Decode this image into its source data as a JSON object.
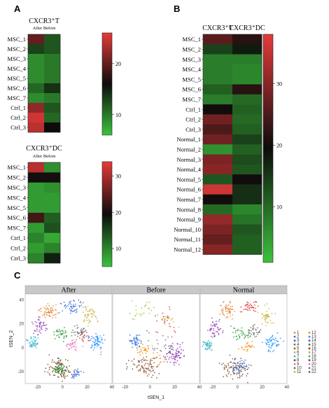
{
  "panels": {
    "a": "A",
    "b": "B",
    "c": "C"
  },
  "colors": {
    "low": "#3cc23c",
    "mid": "#0c0c0c",
    "high": "#e63a3a"
  },
  "chart_data": [
    {
      "type": "heatmap",
      "title": "CXCR3⁺T",
      "subtitle": "After Before",
      "columns": [
        "After",
        "Before"
      ],
      "rows": [
        "MSC_1",
        "MSC_2",
        "MSC_3",
        "MSC_4",
        "MSC_5",
        "MSC_6",
        "MSC_7",
        "Ctrl_1",
        "Ctrl_2",
        "Ctrl_3"
      ],
      "values": [
        [
          20,
          12
        ],
        [
          13,
          12
        ],
        [
          9,
          10
        ],
        [
          9,
          10
        ],
        [
          9,
          10
        ],
        [
          11,
          14
        ],
        [
          9,
          10
        ],
        [
          22,
          12
        ],
        [
          25,
          11
        ],
        [
          24,
          16
        ]
      ],
      "colorbar": {
        "ticks": [
          10,
          20
        ],
        "range": [
          6,
          26
        ]
      }
    },
    {
      "type": "heatmap",
      "title": "CXCR3⁺DC",
      "subtitle": "After Before",
      "columns": [
        "After",
        "Before"
      ],
      "rows": [
        "MSC_1",
        "MSC_2",
        "MSC_3",
        "MSC_4",
        "MSC_5",
        "MSC_6",
        "MSC_7",
        "Ctrl_1",
        "Ctrl_2",
        "Ctrl_3"
      ],
      "values": [
        [
          31,
          9
        ],
        [
          20,
          20
        ],
        [
          8,
          9
        ],
        [
          8,
          8
        ],
        [
          8,
          8
        ],
        [
          23,
          13
        ],
        [
          8,
          14
        ],
        [
          10,
          7
        ],
        [
          8,
          10
        ],
        [
          10,
          18
        ]
      ],
      "colorbar": {
        "ticks": [
          10,
          20,
          30
        ],
        "range": [
          5,
          34
        ]
      }
    },
    {
      "type": "heatmap",
      "title": "",
      "columns": [
        "CXCR3⁺T",
        "CXCR3⁺DC"
      ],
      "rows": [
        "MSC_1",
        "MSC_2",
        "MSC_3",
        "MSC_4",
        "MSC_5",
        "MSC_6",
        "MSC_7",
        "Ctrl_1",
        "Ctrl_2",
        "Ctrl_3",
        "Normal_1",
        "Normal_2",
        "Normal_3",
        "Normal_4",
        "Normal_5",
        "Normal_6",
        "Normal_7",
        "Normal_8",
        "Normal_9",
        "Normal_10",
        "Normal_11",
        "Normal_12"
      ],
      "values": [
        [
          26,
          22
        ],
        [
          14,
          18
        ],
        [
          8,
          8
        ],
        [
          8,
          7
        ],
        [
          8,
          7
        ],
        [
          11,
          22
        ],
        [
          8,
          10
        ],
        [
          20,
          11
        ],
        [
          28,
          10
        ],
        [
          25,
          11
        ],
        [
          28,
          14
        ],
        [
          6,
          11
        ],
        [
          29,
          13
        ],
        [
          30,
          12
        ],
        [
          12,
          20
        ],
        [
          36,
          16
        ],
        [
          20,
          16
        ],
        [
          10,
          7
        ],
        [
          31,
          9
        ],
        [
          29,
          12
        ],
        [
          27,
          11
        ],
        [
          30,
          11
        ]
      ],
      "colorbar": {
        "ticks": [
          10,
          20,
          30
        ],
        "range": [
          1,
          38
        ]
      }
    },
    {
      "type": "scatter",
      "title": "",
      "xlabel": "tSEN_1",
      "ylabel": "tSEN_2",
      "facets": [
        "After",
        "Before",
        "Normal"
      ],
      "xticks": [
        "-20",
        "0",
        "20",
        "40"
      ],
      "yticks": [
        "40",
        "20",
        "0",
        "-20"
      ],
      "xlim": [
        -30,
        40
      ],
      "ylim": [
        -30,
        45
      ],
      "legend": [
        "1",
        "2",
        "3",
        "4",
        "5",
        "6",
        "7",
        "8",
        "9",
        "10",
        "11",
        "12",
        "13",
        "14",
        "15",
        "16",
        "17",
        "18",
        "19",
        "20",
        "21",
        "22"
      ],
      "legend_placement": "right",
      "palette": [
        "#e8893a",
        "#3a6fd8",
        "#8e3bb5",
        "#2e9e3e",
        "#d83a3a",
        "#c9b43a",
        "#3ab5c9",
        "#7a4a2a",
        "#e06fb0",
        "#6a6a6a",
        "#9acd32",
        "#ff8c00",
        "#1e90ff",
        "#9932cc",
        "#228b22",
        "#b22222",
        "#daa520",
        "#20b2aa",
        "#8b4513",
        "#ff69b4",
        "#4682b4",
        "#556b2f"
      ],
      "clusters": {
        "After": [
          {
            "cluster": 1,
            "x": -10,
            "y": 30,
            "n": 60,
            "sx": 5,
            "sy": 4
          },
          {
            "cluster": 2,
            "x": 8,
            "y": 34,
            "n": 50,
            "sx": 6,
            "sy": 4
          },
          {
            "cluster": 6,
            "x": 22,
            "y": 28,
            "n": 45,
            "sx": 4,
            "sy": 5
          },
          {
            "cluster": 3,
            "x": -18,
            "y": 18,
            "n": 45,
            "sx": 4,
            "sy": 5
          },
          {
            "cluster": 7,
            "x": -24,
            "y": 4,
            "n": 45,
            "sx": 3,
            "sy": 4
          },
          {
            "cluster": 13,
            "x": 28,
            "y": 5,
            "n": 60,
            "sx": 5,
            "sy": 5
          },
          {
            "cluster": 4,
            "x": 0,
            "y": 12,
            "n": 40,
            "sx": 6,
            "sy": 4
          },
          {
            "cluster": 9,
            "x": 8,
            "y": 2,
            "n": 30,
            "sx": 4,
            "sy": 3
          },
          {
            "cluster": 8,
            "x": -2,
            "y": -18,
            "n": 110,
            "sx": 8,
            "sy": 6
          },
          {
            "cluster": 4,
            "x": -2,
            "y": -18,
            "n": 40,
            "sx": 4,
            "sy": 3
          },
          {
            "cluster": 2,
            "x": 12,
            "y": -22,
            "n": 30,
            "sx": 3,
            "sy": 3
          },
          {
            "cluster": 10,
            "x": 14,
            "y": 14,
            "n": 35,
            "sx": 4,
            "sy": 3
          },
          {
            "cluster": 5,
            "x": 18,
            "y": 8,
            "n": 15,
            "sx": 3,
            "sy": 3
          }
        ],
        "Before": [
          {
            "cluster": 11,
            "x": -5,
            "y": 32,
            "n": 25,
            "sx": 8,
            "sy": 6
          },
          {
            "cluster": 6,
            "x": 15,
            "y": 25,
            "n": 20,
            "sx": 6,
            "sy": 5
          },
          {
            "cluster": 2,
            "x": -12,
            "y": 6,
            "n": 45,
            "sx": 3,
            "sy": 4
          },
          {
            "cluster": 12,
            "x": -4,
            "y": -2,
            "n": 25,
            "sx": 4,
            "sy": 3
          },
          {
            "cluster": 3,
            "x": 20,
            "y": -5,
            "n": 70,
            "sx": 6,
            "sy": 6
          },
          {
            "cluster": 8,
            "x": -4,
            "y": -16,
            "n": 80,
            "sx": 9,
            "sy": 6
          },
          {
            "cluster": 10,
            "x": 8,
            "y": 0,
            "n": 30,
            "sx": 10,
            "sy": 8
          },
          {
            "cluster": 1,
            "x": 5,
            "y": -10,
            "n": 20,
            "sx": 8,
            "sy": 4
          },
          {
            "cluster": 5,
            "x": 10,
            "y": 20,
            "n": 20,
            "sx": 10,
            "sy": 10
          }
        ],
        "Normal": [
          {
            "cluster": 1,
            "x": -8,
            "y": 32,
            "n": 55,
            "sx": 5,
            "sy": 4
          },
          {
            "cluster": 5,
            "x": 10,
            "y": 34,
            "n": 40,
            "sx": 5,
            "sy": 4
          },
          {
            "cluster": 6,
            "x": 24,
            "y": 26,
            "n": 40,
            "sx": 4,
            "sy": 5
          },
          {
            "cluster": 3,
            "x": -18,
            "y": 16,
            "n": 45,
            "sx": 4,
            "sy": 5
          },
          {
            "cluster": 7,
            "x": -24,
            "y": 2,
            "n": 45,
            "sx": 3,
            "sy": 4
          },
          {
            "cluster": 13,
            "x": 28,
            "y": 4,
            "n": 55,
            "sx": 5,
            "sy": 5
          },
          {
            "cluster": 4,
            "x": 2,
            "y": 12,
            "n": 40,
            "sx": 6,
            "sy": 4
          },
          {
            "cluster": 8,
            "x": -2,
            "y": -18,
            "n": 80,
            "sx": 8,
            "sy": 6
          },
          {
            "cluster": 2,
            "x": 2,
            "y": -16,
            "n": 40,
            "sx": 5,
            "sy": 4
          },
          {
            "cluster": 10,
            "x": 14,
            "y": 14,
            "n": 30,
            "sx": 4,
            "sy": 3
          },
          {
            "cluster": 12,
            "x": 8,
            "y": 2,
            "n": 25,
            "sx": 4,
            "sy": 3
          }
        ]
      }
    }
  ]
}
